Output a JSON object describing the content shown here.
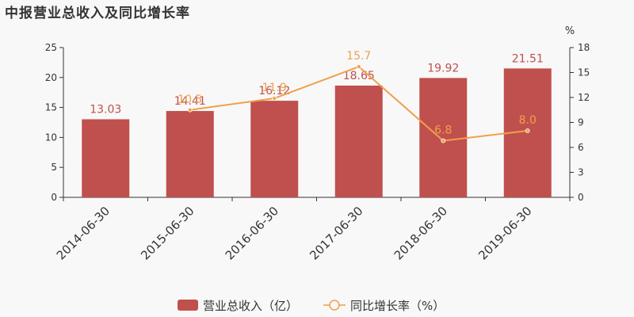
{
  "chart_data": {
    "type": "bar+line",
    "title": "中报营业总收入及同比增长率",
    "categories": [
      "2014-06-30",
      "2015-06-30",
      "2016-06-30",
      "2017-06-30",
      "2018-06-30",
      "2019-06-30"
    ],
    "series": [
      {
        "name": "营业总收入（亿）",
        "type": "bar",
        "axis": "left",
        "color": "#c0504d",
        "values": [
          13.03,
          14.41,
          16.12,
          18.65,
          19.92,
          21.51
        ],
        "labels": [
          "13.03",
          "14.41",
          "16.12",
          "18.65",
          "19.92",
          "21.51"
        ]
      },
      {
        "name": "同比增长率（%）",
        "type": "line",
        "axis": "right",
        "color": "#f0a04b",
        "values": [
          null,
          10.5,
          11.9,
          15.7,
          6.8,
          8.0
        ],
        "labels": [
          "",
          "10.5",
          "11.9",
          "15.7",
          "6.8",
          "8.0"
        ]
      }
    ],
    "y_left": {
      "min": 0,
      "max": 25,
      "ticks": [
        0,
        5,
        10,
        15,
        20,
        25
      ]
    },
    "y_right": {
      "min": 0,
      "max": 18,
      "ticks": [
        0,
        3,
        6,
        9,
        12,
        15,
        18
      ],
      "unit": "%"
    },
    "grid": false,
    "legend": "bottom-center"
  }
}
